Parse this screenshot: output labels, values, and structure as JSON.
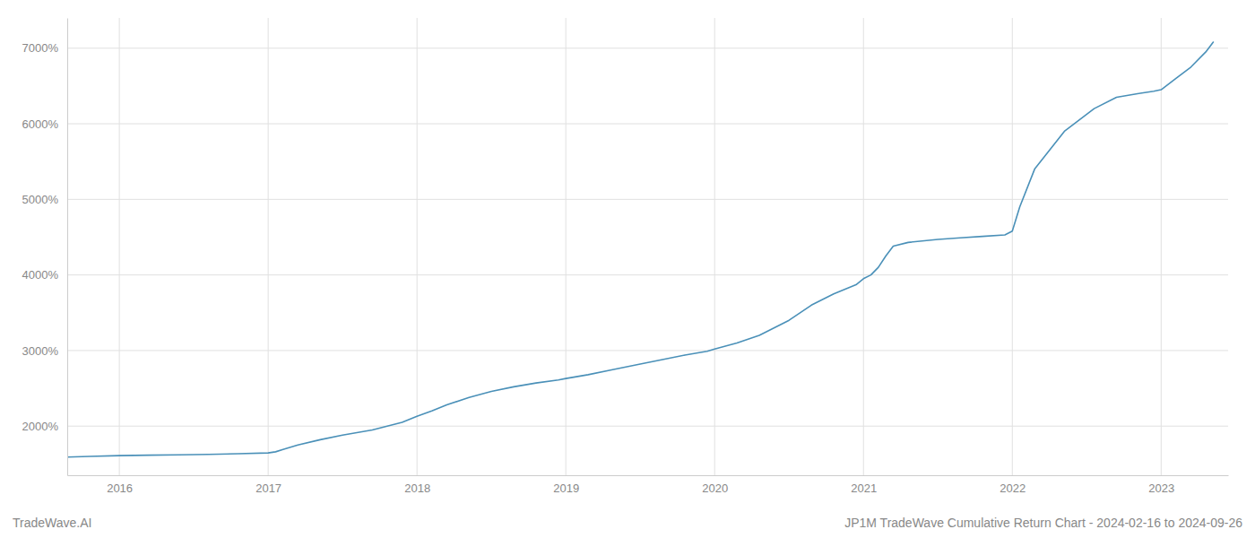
{
  "chart_data": {
    "type": "line",
    "title": "JP1M TradeWave Cumulative Return Chart - 2024-02-16 to 2024-09-26",
    "annotations": [
      "TradeWave.AI"
    ],
    "color": "#4a90b8",
    "grid": true,
    "xlim": [
      2015.65,
      2023.45
    ],
    "ylim": [
      1350,
      7400
    ],
    "xticks": [
      2016,
      2017,
      2018,
      2019,
      2020,
      2021,
      2022,
      2023
    ],
    "yticks": [
      {
        "value": 2000,
        "label": "2000%"
      },
      {
        "value": 3000,
        "label": "3000%"
      },
      {
        "value": 4000,
        "label": "4000%"
      },
      {
        "value": 5000,
        "label": "5000%"
      },
      {
        "value": 6000,
        "label": "6000%"
      },
      {
        "value": 7000,
        "label": "7000%"
      }
    ],
    "x": [
      2015.65,
      2015.8,
      2016.0,
      2016.2,
      2016.4,
      2016.6,
      2016.8,
      2017.0,
      2017.05,
      2017.1,
      2017.2,
      2017.35,
      2017.5,
      2017.7,
      2017.9,
      2018.0,
      2018.1,
      2018.2,
      2018.35,
      2018.5,
      2018.65,
      2018.8,
      2018.95,
      2019.0,
      2019.15,
      2019.3,
      2019.5,
      2019.65,
      2019.8,
      2019.95,
      2020.0,
      2020.15,
      2020.3,
      2020.5,
      2020.65,
      2020.8,
      2020.95,
      2021.0,
      2021.05,
      2021.1,
      2021.15,
      2021.2,
      2021.3,
      2021.5,
      2021.65,
      2021.8,
      2021.95,
      2022.0,
      2022.05,
      2022.15,
      2022.35,
      2022.55,
      2022.7,
      2022.85,
      2022.95,
      2023.0,
      2023.1,
      2023.2,
      2023.3,
      2023.35
    ],
    "values": [
      1590,
      1600,
      1610,
      1615,
      1620,
      1625,
      1635,
      1645,
      1660,
      1690,
      1750,
      1820,
      1880,
      1950,
      2050,
      2130,
      2200,
      2280,
      2380,
      2460,
      2520,
      2570,
      2610,
      2630,
      2680,
      2740,
      2820,
      2880,
      2940,
      2990,
      3020,
      3100,
      3200,
      3400,
      3600,
      3750,
      3870,
      3950,
      4000,
      4100,
      4250,
      4380,
      4430,
      4470,
      4490,
      4510,
      4530,
      4580,
      4900,
      5400,
      5900,
      6200,
      6350,
      6400,
      6430,
      6450,
      6600,
      6750,
      6950,
      7080
    ]
  }
}
